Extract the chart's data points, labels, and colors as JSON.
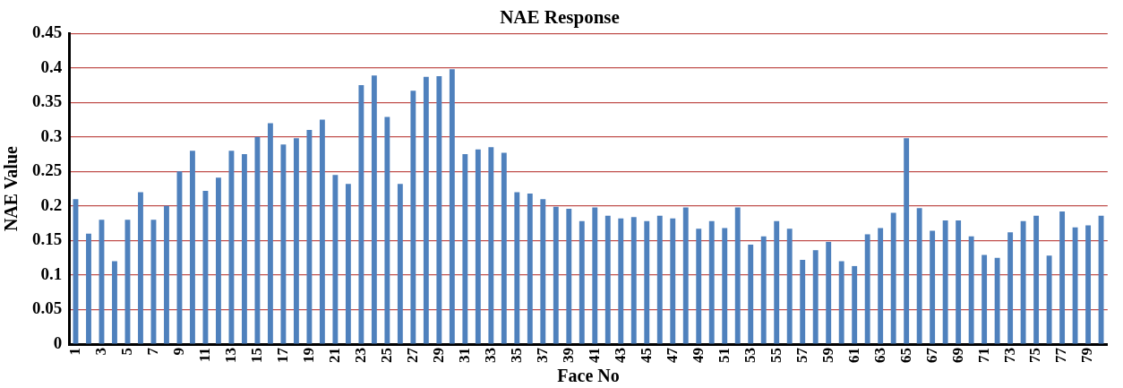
{
  "chart_data": {
    "type": "bar",
    "title": "NAE Response",
    "xlabel": "Face No",
    "ylabel": "NAE Value",
    "categories": [
      "1",
      null,
      "3",
      null,
      "5",
      null,
      "7",
      null,
      "9",
      null,
      "11",
      null,
      "13",
      null,
      "15",
      null,
      "17",
      null,
      "19",
      null,
      "21",
      null,
      "23",
      null,
      "25",
      null,
      "27",
      null,
      "29",
      null,
      "31",
      null,
      "33",
      null,
      "35",
      null,
      "37",
      null,
      "39",
      null,
      "41",
      null,
      "43",
      null,
      "45",
      null,
      "47",
      null,
      "49",
      null,
      "51",
      null,
      "53",
      null,
      "55",
      null,
      "57",
      null,
      "59",
      null,
      "61",
      null,
      "63",
      null,
      "65",
      null,
      "67",
      null,
      "69",
      null,
      "71",
      null,
      "73",
      null,
      "75",
      null,
      "77",
      null,
      "79",
      null
    ],
    "values": [
      0.21,
      0.16,
      0.18,
      0.12,
      0.18,
      0.22,
      0.18,
      0.2,
      0.25,
      0.28,
      0.222,
      0.241,
      0.28,
      0.275,
      0.3,
      0.32,
      0.289,
      0.298,
      0.31,
      0.325,
      0.245,
      0.232,
      0.375,
      0.389,
      0.329,
      0.232,
      0.367,
      0.387,
      0.388,
      0.398,
      0.275,
      0.282,
      0.285,
      0.277,
      0.22,
      0.218,
      0.21,
      0.199,
      0.196,
      0.178,
      0.198,
      0.186,
      0.182,
      0.184,
      0.178,
      0.186,
      0.182,
      0.198,
      0.167,
      0.178,
      0.168,
      0.198,
      0.144,
      0.156,
      0.178,
      0.167,
      0.122,
      0.136,
      0.148,
      0.12,
      0.113,
      0.159,
      0.168,
      0.19,
      0.298,
      0.197,
      0.164,
      0.179,
      0.179,
      0.156,
      0.129,
      0.125,
      0.162,
      0.178,
      0.186,
      0.128,
      0.192,
      0.169,
      0.172,
      0.186
    ],
    "color": "#4f81bd",
    "ylim": [
      0,
      0.45
    ],
    "yticks": [
      0,
      0.05,
      0.1,
      0.15,
      0.2,
      0.25,
      0.3,
      0.35,
      0.4,
      0.45
    ],
    "grid": "y",
    "legend": false
  }
}
